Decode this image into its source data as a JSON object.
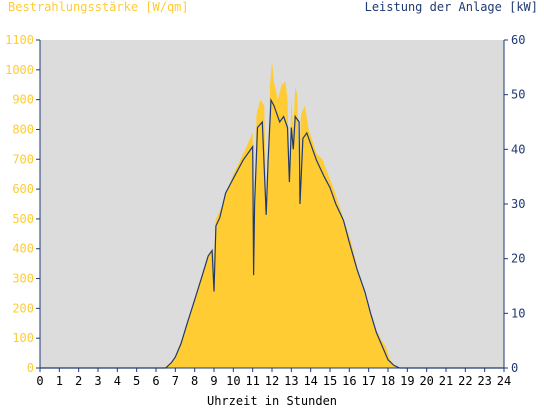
{
  "chart_data": {
    "type": "area",
    "title_left": "Bestrahlungsstärke [W/qm]",
    "title_right": "Leistung der Anlage [kW]",
    "xlabel": "Uhrzeit in Stunden",
    "xlim": [
      0,
      24
    ],
    "ylim_left": [
      0,
      1100
    ],
    "ylim_right": [
      0,
      60
    ],
    "x_ticks": [
      "0",
      "1",
      "2",
      "3",
      "4",
      "5",
      "6",
      "7",
      "8",
      "9",
      "10",
      "11",
      "12",
      "13",
      "14",
      "15",
      "16",
      "17",
      "18",
      "19",
      "20",
      "21",
      "22",
      "23",
      "24"
    ],
    "y_ticks_left": [
      "0",
      "100",
      "200",
      "300",
      "400",
      "500",
      "600",
      "700",
      "800",
      "900",
      "1000",
      "1100"
    ],
    "y_ticks_right": [
      "0",
      "10",
      "20",
      "30",
      "40",
      "50",
      "60"
    ],
    "grid": false,
    "colors": {
      "irradiance_fill": "#ffcc33",
      "power_line": "#1f3a73",
      "plot_bg": "#dcdcdc",
      "axis": "#1f3a73"
    },
    "series": [
      {
        "axis": "left",
        "style": "filled-area",
        "points": [
          [
            0,
            0
          ],
          [
            6.2,
            0
          ],
          [
            6.5,
            5
          ],
          [
            6.8,
            20
          ],
          [
            7.0,
            40
          ],
          [
            7.3,
            90
          ],
          [
            7.6,
            150
          ],
          [
            8.0,
            230
          ],
          [
            8.3,
            300
          ],
          [
            8.6,
            360
          ],
          [
            8.9,
            400
          ],
          [
            9.0,
            380
          ],
          [
            9.1,
            500
          ],
          [
            9.4,
            540
          ],
          [
            9.7,
            600
          ],
          [
            10.0,
            650
          ],
          [
            10.3,
            690
          ],
          [
            10.6,
            730
          ],
          [
            10.8,
            760
          ],
          [
            11.0,
            790
          ],
          [
            11.05,
            310
          ],
          [
            11.1,
            500
          ],
          [
            11.2,
            850
          ],
          [
            11.4,
            900
          ],
          [
            11.6,
            880
          ],
          [
            11.7,
            550
          ],
          [
            11.8,
            700
          ],
          [
            11.9,
            950
          ],
          [
            12.0,
            1030
          ],
          [
            12.1,
            960
          ],
          [
            12.3,
            900
          ],
          [
            12.5,
            950
          ],
          [
            12.7,
            960
          ],
          [
            12.8,
            900
          ],
          [
            12.9,
            650
          ],
          [
            13.0,
            900
          ],
          [
            13.1,
            800
          ],
          [
            13.2,
            940
          ],
          [
            13.3,
            920
          ],
          [
            13.4,
            650
          ],
          [
            13.5,
            850
          ],
          [
            13.7,
            880
          ],
          [
            13.9,
            800
          ],
          [
            14.0,
            780
          ],
          [
            14.3,
            720
          ],
          [
            14.6,
            700
          ],
          [
            14.9,
            650
          ],
          [
            15.2,
            600
          ],
          [
            15.5,
            540
          ],
          [
            15.8,
            480
          ],
          [
            16.1,
            420
          ],
          [
            16.4,
            340
          ],
          [
            16.7,
            270
          ],
          [
            17.0,
            200
          ],
          [
            17.3,
            140
          ],
          [
            17.6,
            100
          ],
          [
            17.9,
            70
          ],
          [
            18.1,
            30
          ],
          [
            18.3,
            10
          ],
          [
            18.5,
            0
          ],
          [
            24,
            0
          ]
        ]
      },
      {
        "axis": "right",
        "style": "line",
        "points": [
          [
            0,
            0
          ],
          [
            6.5,
            0
          ],
          [
            6.8,
            1
          ],
          [
            7.0,
            2
          ],
          [
            7.3,
            4.5
          ],
          [
            7.6,
            8
          ],
          [
            8.0,
            12.5
          ],
          [
            8.4,
            17
          ],
          [
            8.7,
            20.5
          ],
          [
            8.9,
            21.5
          ],
          [
            9.0,
            14
          ],
          [
            9.1,
            26
          ],
          [
            9.3,
            27.5
          ],
          [
            9.6,
            32
          ],
          [
            9.9,
            34
          ],
          [
            10.2,
            36
          ],
          [
            10.5,
            38
          ],
          [
            10.8,
            39.5
          ],
          [
            11.0,
            40.5
          ],
          [
            11.05,
            17
          ],
          [
            11.1,
            30
          ],
          [
            11.25,
            44
          ],
          [
            11.5,
            45
          ],
          [
            11.7,
            28
          ],
          [
            11.8,
            38
          ],
          [
            11.95,
            49
          ],
          [
            12.1,
            48
          ],
          [
            12.4,
            45
          ],
          [
            12.6,
            46
          ],
          [
            12.8,
            44
          ],
          [
            12.9,
            34
          ],
          [
            13.0,
            44
          ],
          [
            13.1,
            40
          ],
          [
            13.2,
            46
          ],
          [
            13.4,
            45
          ],
          [
            13.45,
            30
          ],
          [
            13.6,
            42
          ],
          [
            13.8,
            43
          ],
          [
            14.0,
            41
          ],
          [
            14.3,
            38
          ],
          [
            14.7,
            35
          ],
          [
            15.0,
            33
          ],
          [
            15.3,
            30
          ],
          [
            15.7,
            27
          ],
          [
            16.0,
            23
          ],
          [
            16.4,
            18
          ],
          [
            16.8,
            14
          ],
          [
            17.1,
            10
          ],
          [
            17.4,
            6.5
          ],
          [
            17.7,
            4
          ],
          [
            18.0,
            1.5
          ],
          [
            18.3,
            0.5
          ],
          [
            18.6,
            0
          ],
          [
            24,
            0
          ]
        ]
      }
    ]
  }
}
